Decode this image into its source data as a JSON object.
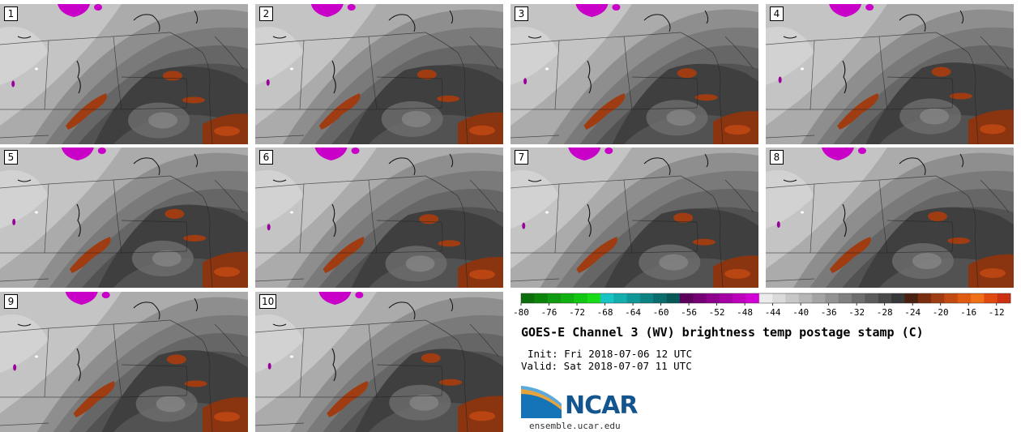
{
  "title": "GOES-E Channel 3 (WV) brightness temp postage stamp (C)",
  "init": "Init: Fri 2018-07-06 12 UTC",
  "valid": "Valid: Sat 2018-07-07 11 UTC",
  "logo_text": "NCAR",
  "site": "ensemble.ucar.edu",
  "stamps": [
    {
      "label": "1"
    },
    {
      "label": "2"
    },
    {
      "label": "3"
    },
    {
      "label": "4"
    },
    {
      "label": "5"
    },
    {
      "label": "6"
    },
    {
      "label": "7"
    },
    {
      "label": "8"
    },
    {
      "label": "9"
    },
    {
      "label": "10"
    }
  ],
  "colorbar": {
    "ticks": [
      "-80",
      "-76",
      "-72",
      "-68",
      "-64",
      "-60",
      "-56",
      "-52",
      "-48",
      "-44",
      "-40",
      "-36",
      "-32",
      "-28",
      "-24",
      "-20",
      "-16",
      "-12"
    ],
    "colors": [
      "#0a6e0a",
      "#0c840c",
      "#0f9a0f",
      "#11b011",
      "#14c614",
      "#17dc17",
      "#18c4c4",
      "#14adad",
      "#109797",
      "#0c8282",
      "#0a6c6c",
      "#085858",
      "#5c005c",
      "#740074",
      "#8c008c",
      "#a400a4",
      "#bc00bc",
      "#d300d3",
      "#ececec",
      "#dadada",
      "#c8c8c8",
      "#b6b6b6",
      "#a4a4a4",
      "#929292",
      "#808080",
      "#6e6e6e",
      "#5c5c5c",
      "#4a4a4a",
      "#383838",
      "#4a2010",
      "#7a2e10",
      "#a03c12",
      "#c44a14",
      "#e05a12",
      "#f07018",
      "#e04a10",
      "#cc3010"
    ]
  }
}
